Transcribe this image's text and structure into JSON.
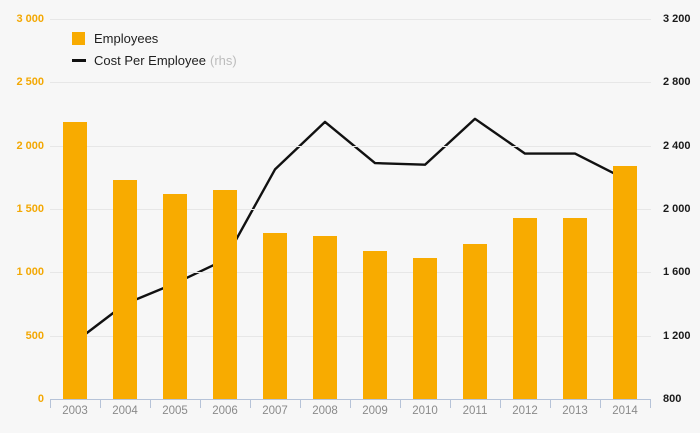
{
  "chart_data": {
    "type": "bar",
    "title": "",
    "categories": [
      "2003",
      "2004",
      "2005",
      "2006",
      "2007",
      "2008",
      "2009",
      "2010",
      "2011",
      "2012",
      "2013",
      "2014"
    ],
    "series": [
      {
        "name": "Employees",
        "type": "bar",
        "axis": "left",
        "color": "#F8AB00",
        "values": [
          2190,
          1730,
          1620,
          1650,
          1310,
          1290,
          1170,
          1110,
          1220,
          1430,
          1430,
          1840
        ]
      },
      {
        "name": "Cost Per Employee (rhs)",
        "type": "line",
        "axis": "right",
        "color": "#111111",
        "values": [
          1160,
          1400,
          1530,
          1680,
          2250,
          2550,
          2290,
          2280,
          2570,
          2350,
          2350,
          2190
        ]
      }
    ],
    "left_axis": {
      "min": 0,
      "max": 3000,
      "tick_step": 500,
      "tick_values": [
        0,
        500,
        1000,
        1500,
        2000,
        2500,
        3000
      ],
      "tick_labels": [
        "0",
        "500",
        "1 000",
        "1 500",
        "2 000",
        "2 500",
        "3 000"
      ],
      "label_color": "#F3A804"
    },
    "right_axis": {
      "min": 800,
      "max": 3200,
      "tick_step": 400,
      "tick_values": [
        800,
        1200,
        1600,
        2000,
        2400,
        2800,
        3200
      ],
      "tick_labels": [
        "800",
        "1 200",
        "1 600",
        "2 000",
        "2 400",
        "2 800",
        "3 200"
      ],
      "label_color": "#1a1a1a"
    },
    "legend": [
      {
        "label": "Employees",
        "suffix": ""
      },
      {
        "label": "Cost Per Employee",
        "suffix": "(rhs)"
      }
    ],
    "legend_position": "top-left",
    "grid": true,
    "colors": {
      "background": "#f7f7f7",
      "bar": "#F8AB00",
      "line": "#111111",
      "gridline": "#e7e7e7",
      "axis_line": "#b6c3d8",
      "x_label": "#8a8a8a",
      "rhs_note": "#bcbcbc"
    }
  }
}
